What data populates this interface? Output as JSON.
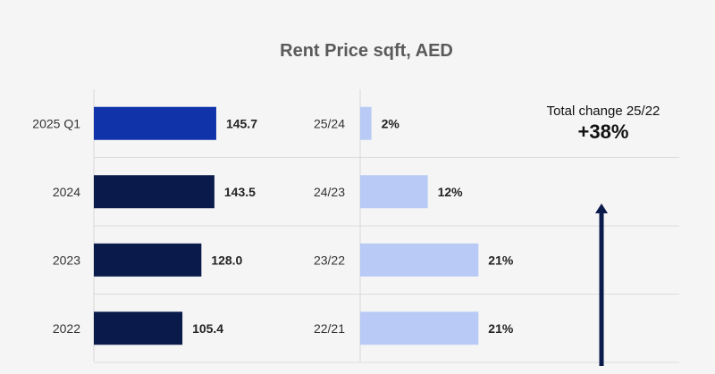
{
  "chart_data": {
    "type": "bar",
    "title": "Rent Price sqft, AED",
    "categories": [
      "2025 Q1",
      "2024",
      "2023",
      "2022"
    ],
    "values": [
      145.7,
      143.5,
      128.0,
      105.4
    ],
    "value_labels": [
      "145.7",
      "143.5",
      "128.0",
      "105.4"
    ],
    "yoy": {
      "categories": [
        "25/24",
        "24/23",
        "23/22",
        "22/21"
      ],
      "values": [
        2,
        12,
        21,
        21
      ],
      "value_labels": [
        "2%",
        "12%",
        "21%",
        "21%"
      ]
    },
    "total_change": {
      "label": "Total change 25/22",
      "value": "+38%"
    },
    "colors": {
      "highlight_bar": "#1133aa",
      "bar": "#0a1a4a",
      "yoy_bar": "#b8caf5",
      "arrow": "#0a1a4a"
    }
  }
}
